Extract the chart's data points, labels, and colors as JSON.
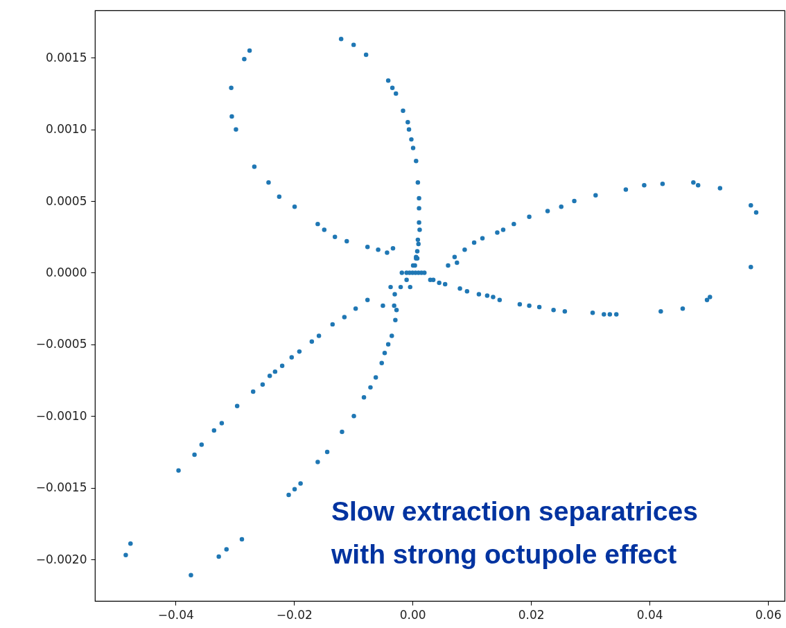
{
  "chart_data": {
    "type": "scatter",
    "annotations": [
      "Slow extraction separatrices\nwith strong octupole effect"
    ],
    "xlim": [
      -0.0536,
      0.0628
    ],
    "ylim": [
      -0.00229,
      0.00183
    ],
    "xticks": [
      {
        "value": -0.04,
        "label": "−0.04"
      },
      {
        "value": -0.02,
        "label": "−0.02"
      },
      {
        "value": 0,
        "label": "0.00"
      },
      {
        "value": 0.02,
        "label": "0.02"
      },
      {
        "value": 0.04,
        "label": "0.04"
      },
      {
        "value": 0.06,
        "label": "0.06"
      }
    ],
    "yticks": [
      {
        "value": -0.002,
        "label": "−0.0020"
      },
      {
        "value": -0.0015,
        "label": "−0.0015"
      },
      {
        "value": -0.001,
        "label": "−0.0010"
      },
      {
        "value": -0.0005,
        "label": "−0.0005"
      },
      {
        "value": 0,
        "label": "0.0000"
      },
      {
        "value": 0.0005,
        "label": "0.0005"
      },
      {
        "value": 0.001,
        "label": "0.0010"
      },
      {
        "value": 0.0015,
        "label": "0.0015"
      }
    ],
    "grid": false,
    "marker": "circle",
    "series": [
      {
        "color": "#1f77b4",
        "x": [
          -0.01205,
          -0.00994,
          -0.00784,
          -0.0041,
          -0.0034,
          -0.0028,
          -0.0016,
          -0.0008,
          -0.0006,
          -0.0002,
          0.0001,
          0.0006,
          0.0009,
          0.0011,
          0.0011,
          0.0011,
          0.0009,
          0.0006,
          -0.0275,
          -0.0284,
          -0.0306,
          -0.0305,
          -0.0298,
          -0.0267,
          -0.0243,
          -0.0225,
          -0.0199,
          -0.016,
          -0.0149,
          -0.0131,
          -0.0111,
          -0.0076,
          -0.0058,
          -0.0043,
          -0.0033,
          0,
          0.0005,
          -0.001,
          0.001,
          0.0008,
          0.002,
          -0.0005,
          0.006,
          0.0075,
          0.0071,
          0.0088,
          0.0104,
          0.0118,
          0.0143,
          0.0153,
          0.0171,
          0.0197,
          0.0228,
          0.0251,
          0.0273,
          0.0309,
          0.036,
          0.0391,
          0.0422,
          0.0474,
          0.0482,
          0.0519,
          0.0571,
          0.058,
          0.0571,
          0.0502,
          0.0497,
          0.0456,
          0.0419,
          0.0344,
          0.0333,
          0.0323,
          0.0304,
          0.0257,
          0.0238,
          0.0214,
          0.0197,
          0.0181,
          0.0147,
          0.0136,
          0.0126,
          0.0112,
          0.0092,
          0.008,
          0.0055,
          0.0035,
          0.0015,
          -0.0018,
          -0.0037,
          -0.0076,
          -0.0096,
          -0.0115,
          -0.0135,
          -0.0158,
          -0.017,
          -0.0191,
          -0.0204,
          -0.022,
          -0.0232,
          -0.0241,
          -0.0253,
          -0.0269,
          -0.0296,
          -0.0322,
          -0.0335,
          -0.0356,
          -0.0368,
          -0.0395,
          -0.0476,
          -0.0484,
          -0.0031,
          -0.0027,
          -0.0029,
          -0.0035,
          -0.0041,
          -0.0047,
          -0.0052,
          -0.0062,
          -0.0071,
          -0.0082,
          -0.0099,
          -0.0119,
          -0.0144,
          -0.016,
          -0.0189,
          -0.0199,
          -0.0209,
          -0.0288,
          -0.0314,
          -0.0327,
          -0.0374,
          0.001,
          0.0008,
          0.0006,
          0.0004,
          -0.001,
          -0.002,
          -0.003,
          -0.005,
          0.003,
          0.0045,
          0.0001,
          0.0012,
          -0.0004
        ],
        "values": [
          0.00163,
          0.00159,
          0.00152,
          0.00134,
          0.00129,
          0.00125,
          0.00113,
          0.00105,
          0.001,
          0.00093,
          0.00087,
          0.00078,
          0.00063,
          0.00052,
          0.00045,
          0.00035,
          0.00023,
          0.00011,
          0.00155,
          0.00149,
          0.00129,
          0.00109,
          0.001,
          0.00074,
          0.00063,
          0.00053,
          0.00046,
          0.00034,
          0.0003,
          0.00025,
          0.00022,
          0.00018,
          0.00016,
          0.00014,
          0.00017,
          0,
          0,
          0,
          0,
          0.0001,
          0,
          0,
          5e-05,
          7e-05,
          0.00011,
          0.00016,
          0.00021,
          0.00024,
          0.00028,
          0.0003,
          0.00034,
          0.00039,
          0.00043,
          0.00046,
          0.0005,
          0.00054,
          0.00058,
          0.00061,
          0.00062,
          0.00063,
          0.00061,
          0.00059,
          0.00047,
          0.00042,
          4e-05,
          -0.00017,
          -0.00019,
          -0.00025,
          -0.00027,
          -0.00029,
          -0.00029,
          -0.00029,
          -0.00028,
          -0.00027,
          -0.00026,
          -0.00024,
          -0.00023,
          -0.00022,
          -0.00019,
          -0.00017,
          -0.00016,
          -0.00015,
          -0.00013,
          -0.00011,
          -8e-05,
          -5e-05,
          0,
          0,
          -0.0001,
          -0.00019,
          -0.00025,
          -0.00031,
          -0.00036,
          -0.00044,
          -0.00048,
          -0.00055,
          -0.00059,
          -0.00065,
          -0.00069,
          -0.00072,
          -0.00078,
          -0.00083,
          -0.00093,
          -0.00105,
          -0.0011,
          -0.0012,
          -0.00127,
          -0.00138,
          -0.00189,
          -0.00197,
          -0.00023,
          -0.00026,
          -0.00033,
          -0.00044,
          -0.0005,
          -0.00056,
          -0.00063,
          -0.00073,
          -0.0008,
          -0.00087,
          -0.001,
          -0.00111,
          -0.00125,
          -0.00132,
          -0.00147,
          -0.00151,
          -0.00155,
          -0.00186,
          -0.00193,
          -0.00198,
          -0.00211,
          0.0002,
          0.00015,
          0.0001,
          5e-05,
          -5e-05,
          -0.0001,
          -0.00015,
          -0.00023,
          -5e-05,
          -7e-05,
          5e-05,
          0.0003,
          -0.0001
        ]
      }
    ]
  }
}
